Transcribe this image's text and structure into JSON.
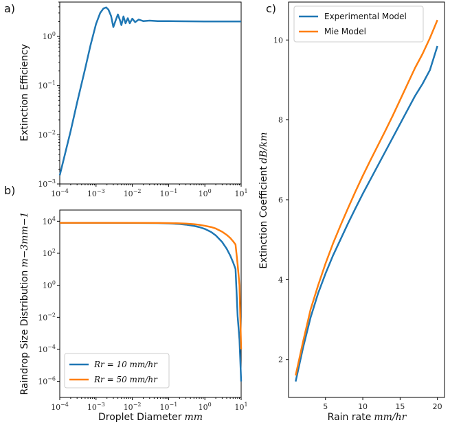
{
  "chart_data": [
    {
      "panel_label": "a)",
      "type": "line",
      "ylabel": "Extinction Efficiency",
      "xscale": "log",
      "yscale": "log",
      "xlim": [
        0.0001,
        10
      ],
      "ylim": [
        0.001,
        5
      ],
      "x_ticks": [
        {
          "base": "10",
          "exp": "−4"
        },
        {
          "base": "10",
          "exp": "−3"
        },
        {
          "base": "10",
          "exp": "−2"
        },
        {
          "base": "10",
          "exp": "−1"
        },
        {
          "base": "10",
          "exp": "0"
        },
        {
          "base": "10",
          "exp": "1"
        }
      ],
      "y_ticks": [
        {
          "base": "10",
          "exp": "−3"
        },
        {
          "base": "10",
          "exp": "−2"
        },
        {
          "base": "10",
          "exp": "−1"
        },
        {
          "base": "10",
          "exp": "0"
        }
      ],
      "series": [
        {
          "color": "#1f77b4",
          "x": [
            0.0001,
            0.0002,
            0.0003,
            0.0005,
            0.0007,
            0.001,
            0.0013,
            0.0016,
            0.0019,
            0.0022,
            0.0026,
            0.003,
            0.0035,
            0.004,
            0.0045,
            0.005,
            0.0057,
            0.0065,
            0.0075,
            0.0085,
            0.01,
            0.012,
            0.015,
            0.02,
            0.03,
            0.05,
            0.1,
            1,
            10
          ],
          "y": [
            0.0015,
            0.012,
            0.045,
            0.22,
            0.65,
            1.8,
            3.0,
            3.7,
            3.9,
            3.5,
            2.6,
            1.55,
            2.15,
            2.8,
            2.2,
            1.7,
            2.55,
            1.85,
            2.35,
            1.85,
            2.3,
            1.95,
            2.2,
            2.05,
            2.1,
            2.05,
            2.05,
            2.02,
            2.02
          ]
        }
      ]
    },
    {
      "panel_label": "b)",
      "type": "line",
      "xlabel": "Droplet Diameter",
      "xlabel_unit": "mm",
      "ylabel": "Raindrop Size Distribution",
      "ylabel_unit": "m−3mm−1",
      "xscale": "log",
      "yscale": "log",
      "xlim": [
        0.0001,
        10
      ],
      "ylim": [
        1e-07,
        50000
      ],
      "x_ticks": [
        {
          "base": "10",
          "exp": "−4"
        },
        {
          "base": "10",
          "exp": "−3"
        },
        {
          "base": "10",
          "exp": "−2"
        },
        {
          "base": "10",
          "exp": "−1"
        },
        {
          "base": "10",
          "exp": "0"
        },
        {
          "base": "10",
          "exp": "1"
        }
      ],
      "y_ticks": [
        {
          "base": "10",
          "exp": "4"
        },
        {
          "base": "10",
          "exp": "2"
        },
        {
          "base": "10",
          "exp": "0"
        },
        {
          "base": "10",
          "exp": "−2"
        },
        {
          "base": "10",
          "exp": "−4"
        },
        {
          "base": "10",
          "exp": "−6"
        }
      ],
      "legend_position": "lower-left",
      "series": [
        {
          "name": "Rr = 10 mm/hr",
          "color": "#1f77b4",
          "x": [
            0.0001,
            0.001,
            0.01,
            0.05,
            0.1,
            0.2,
            0.3,
            0.5,
            0.7,
            1,
            1.5,
            2,
            3,
            4,
            5,
            6,
            7,
            8,
            9,
            10
          ],
          "y": [
            8000,
            8000,
            7900,
            7700,
            7300,
            6700,
            6100,
            5100,
            4300,
            3300,
            2100,
            1300,
            500,
            190,
            72,
            27,
            10.5,
            0.012,
            0.0004,
            1e-06
          ]
        },
        {
          "name": "Rr = 50 mm/hr",
          "color": "#ff7f0e",
          "x": [
            0.0001,
            0.001,
            0.01,
            0.05,
            0.1,
            0.2,
            0.3,
            0.5,
            0.7,
            1,
            1.5,
            2,
            3,
            4,
            5,
            6,
            7,
            8,
            9,
            10
          ],
          "y": [
            8000,
            8000,
            7950,
            7850,
            7700,
            7400,
            7100,
            6500,
            6000,
            5200,
            4300,
            3500,
            2200,
            1400,
            900,
            560,
            350,
            20,
            1,
            0.0001
          ]
        }
      ]
    },
    {
      "panel_label": "c)",
      "type": "line",
      "xlabel": "Rain rate",
      "xlabel_unit": "mm/hr",
      "ylabel": "Extinction Coefficient",
      "ylabel_unit": "dB/km",
      "xlim": [
        0.05,
        20.95
      ],
      "ylim": [
        1.05,
        10.95
      ],
      "x_ticks": [
        "5",
        "10",
        "15",
        "20"
      ],
      "y_ticks": [
        "2",
        "4",
        "6",
        "8",
        "10"
      ],
      "legend_position": "upper-left",
      "series": [
        {
          "name": "Experimental Model",
          "color": "#1f77b4",
          "x": [
            1,
            2,
            3,
            4,
            5,
            6,
            7,
            8,
            9,
            10,
            11,
            12,
            13,
            14,
            15,
            16,
            17,
            18,
            19,
            20
          ],
          "y": [
            1.45,
            2.3,
            3.05,
            3.65,
            4.15,
            4.6,
            5.0,
            5.4,
            5.78,
            6.15,
            6.5,
            6.85,
            7.2,
            7.55,
            7.9,
            8.25,
            8.6,
            8.9,
            9.25,
            9.85
          ]
        },
        {
          "name": "Mie Model",
          "color": "#ff7f0e",
          "x": [
            1,
            2,
            3,
            4,
            5,
            6,
            7,
            8,
            9,
            10,
            11,
            12,
            13,
            14,
            15,
            16,
            17,
            18,
            19,
            20
          ],
          "y": [
            1.6,
            2.45,
            3.25,
            3.85,
            4.4,
            4.9,
            5.35,
            5.78,
            6.2,
            6.6,
            6.98,
            7.35,
            7.72,
            8.1,
            8.5,
            8.9,
            9.3,
            9.65,
            10.05,
            10.5
          ]
        }
      ]
    }
  ]
}
